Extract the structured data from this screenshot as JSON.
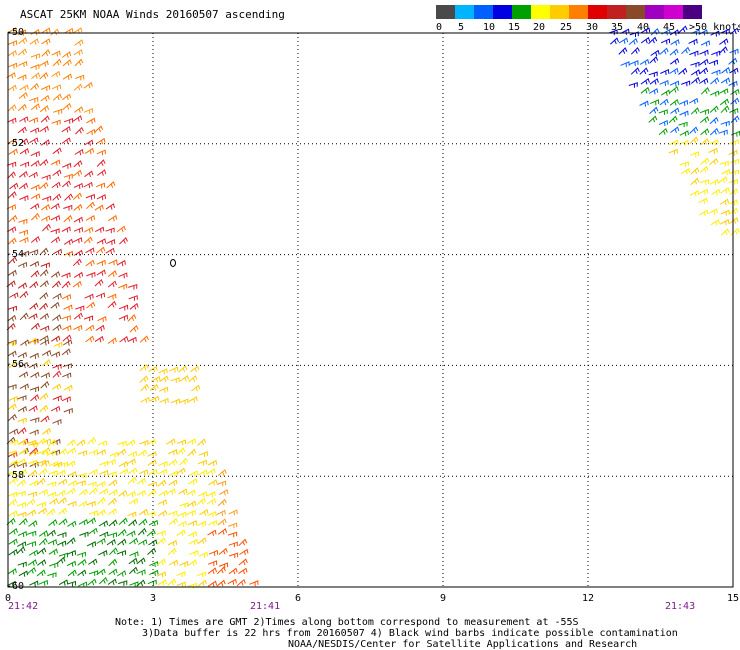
{
  "header": {
    "title": "ASCAT 25KM NOAA Winds 20160507 ascending"
  },
  "legend": {
    "colors": [
      "#4a4a4a",
      "#00b4ff",
      "#0060ff",
      "#0000e0",
      "#00a000",
      "#ffff00",
      "#ffcc00",
      "#ff8000",
      "#e00000",
      "#c02020",
      "#8a4a2a",
      "#a000c0",
      "#d000d0",
      "#4a0080"
    ],
    "labels": [
      "0",
      "5",
      "10",
      "15",
      "20",
      "25",
      "30",
      "35",
      "40",
      "45",
      ">50 knots"
    ]
  },
  "chart_data": {
    "type": "wind-barb-map",
    "x_ticks": [
      "0",
      "3",
      "6",
      "9",
      "12",
      "15"
    ],
    "y_ticks": [
      "-50",
      "-52",
      "-54",
      "-56",
      "-58",
      "-60"
    ],
    "xlim": [
      0,
      15
    ],
    "ylim": [
      -60,
      -50
    ],
    "grid": true,
    "contour_label": "0",
    "times": [
      "21:42",
      "21:41",
      "21:43"
    ]
  },
  "notes": {
    "line1": "Note: 1) Times are GMT 2)Times along bottom correspond to measurement at -55S",
    "line2": "3)Data buffer is 22 hrs from 20160507 4) Black wind barbs indicate possible contamination",
    "line3": "NOAA/NESDIS/Center for Satellite Applications and Research"
  }
}
